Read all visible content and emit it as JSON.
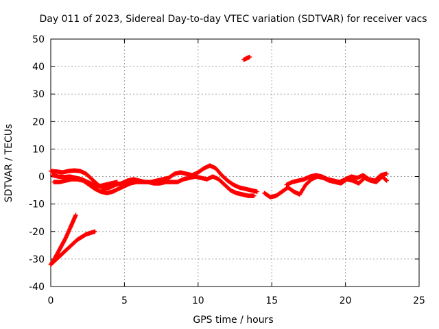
{
  "chart_data": {
    "type": "scatter",
    "title": "Day 011 of 2023, Sidereal Day-to-day VTEC variation (SDTVAR) for receiver vacs",
    "xlabel": "GPS time / hours",
    "ylabel": "SDTVAR / TECUs",
    "xlim": [
      0,
      25
    ],
    "ylim": [
      -40,
      50
    ],
    "xticks": [
      0,
      5,
      10,
      15,
      20,
      25
    ],
    "yticks": [
      -40,
      -30,
      -20,
      -10,
      0,
      10,
      20,
      30,
      40,
      50
    ],
    "grid": true,
    "marker": "plus",
    "color": "#ff0000",
    "series": [
      {
        "name": "trace-upper-main",
        "x": [
          0,
          0.4,
          0.8,
          1.2,
          1.6,
          2.0,
          2.4,
          2.8,
          3.2,
          3.6,
          4.0,
          4.4,
          4.8,
          5.2,
          5.6,
          6.0,
          6.4,
          6.8,
          7.2,
          7.6,
          8.0,
          8.4,
          8.8,
          9.2,
          9.6,
          10.0,
          10.4,
          10.8,
          11.2,
          11.6,
          12.0,
          12.4,
          12.8,
          13.2,
          13.6,
          14.0
        ],
        "y": [
          2.0,
          1.8,
          1.5,
          2.0,
          2.2,
          2.0,
          1.0,
          -1.0,
          -3.0,
          -4.5,
          -4.0,
          -3.0,
          -2.5,
          -1.5,
          -1.0,
          -1.5,
          -2.0,
          -2.0,
          -1.5,
          -1.0,
          -0.5,
          1.0,
          1.5,
          1.0,
          0.5,
          1.5,
          3.0,
          4.0,
          3.0,
          0.5,
          -1.5,
          -3.0,
          -4.0,
          -4.5,
          -5.0,
          -5.5
        ]
      },
      {
        "name": "trace-lower-main",
        "x": [
          0.2,
          0.6,
          1.0,
          1.4,
          1.8,
          2.2,
          2.6,
          3.0,
          3.4,
          3.8,
          4.2,
          4.6,
          5.0,
          5.4,
          5.8,
          6.2,
          6.6,
          7.0,
          7.4,
          7.8,
          8.2,
          8.6,
          9.0,
          9.4,
          9.8,
          10.2,
          10.6,
          11.0,
          11.4,
          11.8,
          12.2,
          12.6,
          13.0,
          13.4,
          13.8
        ],
        "y": [
          -2.0,
          -2.0,
          -1.5,
          -1.0,
          -1.0,
          -1.5,
          -3.0,
          -4.5,
          -5.5,
          -6.0,
          -5.5,
          -4.5,
          -3.5,
          -2.5,
          -2.0,
          -2.0,
          -2.0,
          -2.5,
          -2.5,
          -2.0,
          -2.0,
          -2.0,
          -1.0,
          -0.5,
          0.0,
          -0.5,
          -1.0,
          0.0,
          -1.0,
          -3.0,
          -5.0,
          -6.0,
          -6.5,
          -7.0,
          -7.0
        ]
      },
      {
        "name": "trace-mid-early",
        "x": [
          0.1,
          0.5,
          0.9,
          1.3,
          1.7,
          2.1,
          2.5,
          2.9,
          3.3,
          3.7,
          4.1,
          4.5
        ],
        "y": [
          0.5,
          0.0,
          -0.2,
          0.0,
          -0.5,
          -1.0,
          -2.0,
          -3.0,
          -3.5,
          -3.0,
          -2.5,
          -2.0
        ]
      },
      {
        "name": "trace-late",
        "x": [
          14.5,
          14.9,
          15.3,
          15.7,
          16.1,
          16.5,
          16.9,
          17.3,
          17.7,
          18.1,
          18.5,
          18.9,
          19.3,
          19.7,
          20.1,
          20.5,
          20.9,
          21.3,
          21.7,
          22.1,
          22.5,
          22.8
        ],
        "y": [
          -6.0,
          -7.5,
          -7.0,
          -5.5,
          -4.0,
          -5.5,
          -6.5,
          -3.0,
          -1.0,
          0.0,
          -0.5,
          -1.5,
          -2.0,
          -2.5,
          -1.0,
          -1.5,
          -2.5,
          -0.5,
          -1.5,
          -2.0,
          0.0,
          -1.5
        ]
      },
      {
        "name": "trace-late-upper",
        "x": [
          16.0,
          16.4,
          16.8,
          17.2,
          17.6,
          18.0,
          18.4,
          18.8,
          19.2,
          19.6,
          20.0,
          20.4,
          20.8,
          21.2,
          21.6,
          22.0,
          22.4,
          22.8
        ],
        "y": [
          -3.0,
          -2.0,
          -1.5,
          -1.0,
          0.0,
          0.5,
          0.0,
          -1.0,
          -1.5,
          -2.0,
          -1.0,
          0.0,
          -0.5,
          0.5,
          -1.0,
          -1.5,
          0.5,
          1.0
        ]
      },
      {
        "name": "isolated-point",
        "x": [
          13.1,
          13.3,
          13.5
        ],
        "y": [
          42.5,
          43.0,
          43.5
        ]
      },
      {
        "name": "descending-early-a",
        "x": [
          0,
          0.25,
          0.5,
          0.75,
          1.0,
          1.25,
          1.5,
          1.7
        ],
        "y": [
          -32.0,
          -30.0,
          -27.5,
          -25.0,
          -22.5,
          -19.5,
          -16.5,
          -14.0
        ]
      },
      {
        "name": "descending-early-b",
        "x": [
          0,
          0.3,
          0.6,
          0.9,
          1.2,
          1.5,
          1.8,
          2.1,
          2.4,
          2.7,
          3.0
        ],
        "y": [
          -32.0,
          -30.5,
          -29.0,
          -27.5,
          -26.0,
          -24.5,
          -23.0,
          -22.0,
          -21.0,
          -20.5,
          -20.0
        ]
      }
    ]
  }
}
